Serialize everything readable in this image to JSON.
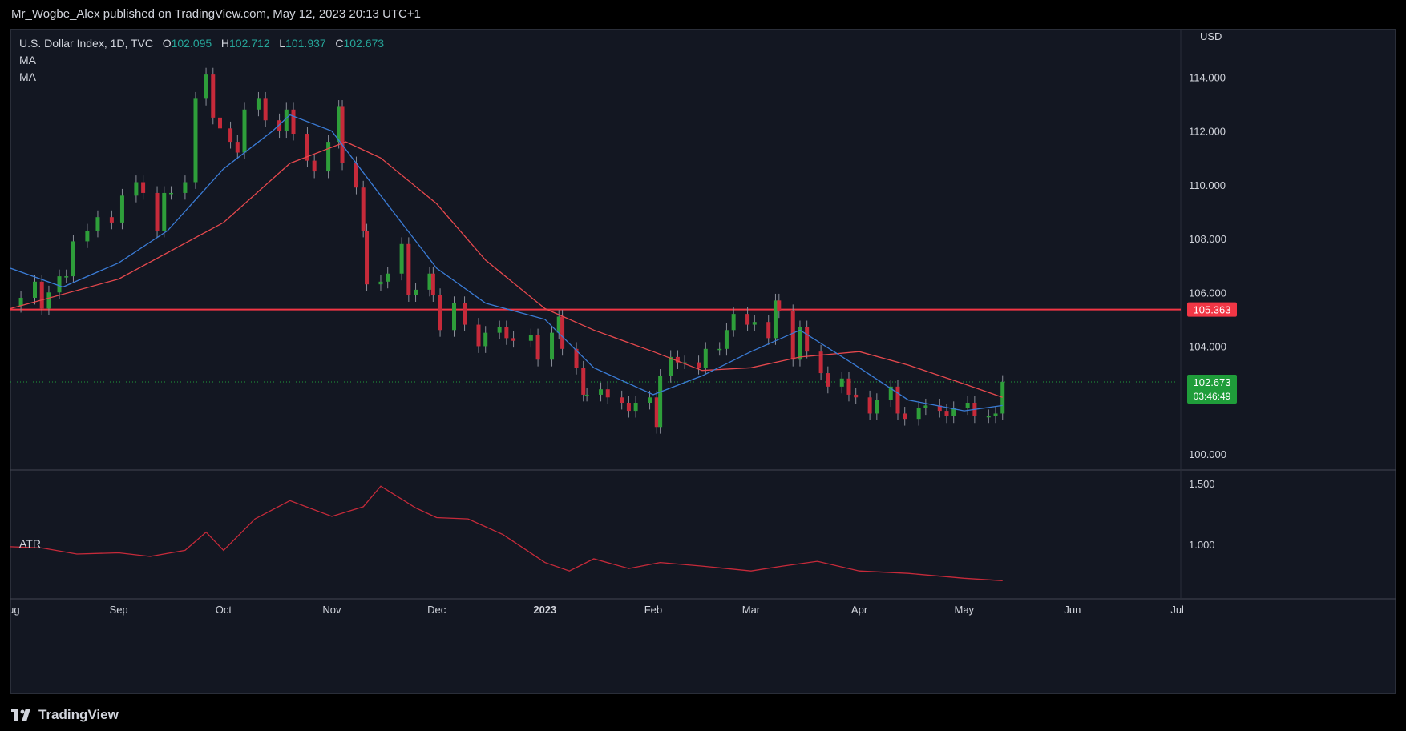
{
  "header": {
    "published_text": "Mr_Wogbe_Alex published on TradingView.com, May 12, 2023 20:13 UTC+1"
  },
  "legend": {
    "symbol": "U.S. Dollar Index, 1D, TVC",
    "open_label": "O",
    "open": "102.095",
    "high_label": "H",
    "high": "102.712",
    "low_label": "L",
    "low": "101.937",
    "close_label": "C",
    "close": "102.673",
    "ma1": "MA",
    "ma2": "MA"
  },
  "footer": {
    "brand": "TradingView"
  },
  "colors": {
    "up": "#26a69a",
    "up_body": "#2e9e3a",
    "down": "#c62a3a",
    "ma_fast": "#3a7bd5",
    "ma_slow": "#e5484d",
    "level": "#f23645",
    "atr": "#c62a3a",
    "price_tag": "#1f9d3a"
  },
  "chart_data": {
    "type": "candlestick",
    "currency": "USD",
    "y_ticks": [
      "114.000",
      "112.000",
      "110.000",
      "108.000",
      "106.000",
      "104.000",
      "100.000"
    ],
    "y_range": [
      99.4,
      115.8
    ],
    "x_ticks": [
      {
        "label": "Aug",
        "date": "2022-08-01"
      },
      {
        "label": "Sep",
        "date": "2022-09-01"
      },
      {
        "label": "Oct",
        "date": "2022-10-01"
      },
      {
        "label": "Nov",
        "date": "2022-11-01"
      },
      {
        "label": "Dec",
        "date": "2022-12-01"
      },
      {
        "label": "2023",
        "date": "2023-01-01"
      },
      {
        "label": "Feb",
        "date": "2023-02-01"
      },
      {
        "label": "Mar",
        "date": "2023-03-01"
      },
      {
        "label": "Apr",
        "date": "2023-04-01"
      },
      {
        "label": "May",
        "date": "2023-05-01"
      },
      {
        "label": "Jun",
        "date": "2023-06-01"
      },
      {
        "label": "Jul",
        "date": "2023-07-01"
      }
    ],
    "x_range": [
      "2022-08-01",
      "2023-07-02"
    ],
    "horizontal_level": {
      "value": 105.363,
      "label": "105.363"
    },
    "last_price": {
      "value": 102.673,
      "label": "102.673",
      "countdown": "03:46:49"
    },
    "closes": [
      {
        "date": "2022-08-04",
        "close": 105.8
      },
      {
        "date": "2022-08-08",
        "close": 106.4
      },
      {
        "date": "2022-08-10",
        "close": 105.4
      },
      {
        "date": "2022-08-12",
        "close": 106.0
      },
      {
        "date": "2022-08-15",
        "close": 106.6
      },
      {
        "date": "2022-08-17",
        "close": 106.6
      },
      {
        "date": "2022-08-19",
        "close": 107.9
      },
      {
        "date": "2022-08-23",
        "close": 108.3
      },
      {
        "date": "2022-08-26",
        "close": 108.8
      },
      {
        "date": "2022-08-30",
        "close": 108.6
      },
      {
        "date": "2022-09-02",
        "close": 109.6
      },
      {
        "date": "2022-09-06",
        "close": 110.1
      },
      {
        "date": "2022-09-08",
        "close": 109.7
      },
      {
        "date": "2022-09-12",
        "close": 108.3
      },
      {
        "date": "2022-09-14",
        "close": 109.7
      },
      {
        "date": "2022-09-16",
        "close": 109.7
      },
      {
        "date": "2022-09-20",
        "close": 110.1
      },
      {
        "date": "2022-09-23",
        "close": 113.2
      },
      {
        "date": "2022-09-26",
        "close": 114.1
      },
      {
        "date": "2022-09-28",
        "close": 112.5
      },
      {
        "date": "2022-09-30",
        "close": 112.1
      },
      {
        "date": "2022-10-03",
        "close": 111.6
      },
      {
        "date": "2022-10-05",
        "close": 111.2
      },
      {
        "date": "2022-10-07",
        "close": 112.8
      },
      {
        "date": "2022-10-11",
        "close": 113.2
      },
      {
        "date": "2022-10-13",
        "close": 112.4
      },
      {
        "date": "2022-10-17",
        "close": 112.0
      },
      {
        "date": "2022-10-19",
        "close": 112.8
      },
      {
        "date": "2022-10-21",
        "close": 111.9
      },
      {
        "date": "2022-10-25",
        "close": 110.9
      },
      {
        "date": "2022-10-27",
        "close": 110.5
      },
      {
        "date": "2022-10-31",
        "close": 111.6
      },
      {
        "date": "2022-11-03",
        "close": 112.9
      },
      {
        "date": "2022-11-04",
        "close": 110.8
      },
      {
        "date": "2022-11-08",
        "close": 109.9
      },
      {
        "date": "2022-11-10",
        "close": 108.3
      },
      {
        "date": "2022-11-11",
        "close": 106.3
      },
      {
        "date": "2022-11-15",
        "close": 106.4
      },
      {
        "date": "2022-11-17",
        "close": 106.7
      },
      {
        "date": "2022-11-21",
        "close": 107.8
      },
      {
        "date": "2022-11-23",
        "close": 105.9
      },
      {
        "date": "2022-11-25",
        "close": 106.1
      },
      {
        "date": "2022-11-29",
        "close": 106.7
      },
      {
        "date": "2022-11-30",
        "close": 105.9
      },
      {
        "date": "2022-12-02",
        "close": 104.6
      },
      {
        "date": "2022-12-06",
        "close": 105.6
      },
      {
        "date": "2022-12-09",
        "close": 104.8
      },
      {
        "date": "2022-12-13",
        "close": 104.0
      },
      {
        "date": "2022-12-15",
        "close": 104.5
      },
      {
        "date": "2022-12-19",
        "close": 104.7
      },
      {
        "date": "2022-12-21",
        "close": 104.3
      },
      {
        "date": "2022-12-23",
        "close": 104.2
      },
      {
        "date": "2022-12-28",
        "close": 104.4
      },
      {
        "date": "2022-12-30",
        "close": 103.5
      },
      {
        "date": "2023-01-03",
        "close": 104.5
      },
      {
        "date": "2023-01-05",
        "close": 105.1
      },
      {
        "date": "2023-01-06",
        "close": 103.9
      },
      {
        "date": "2023-01-10",
        "close": 103.2
      },
      {
        "date": "2023-01-12",
        "close": 102.2
      },
      {
        "date": "2023-01-13",
        "close": 102.2
      },
      {
        "date": "2023-01-17",
        "close": 102.4
      },
      {
        "date": "2023-01-19",
        "close": 102.1
      },
      {
        "date": "2023-01-23",
        "close": 101.9
      },
      {
        "date": "2023-01-25",
        "close": 101.6
      },
      {
        "date": "2023-01-27",
        "close": 101.9
      },
      {
        "date": "2023-01-31",
        "close": 102.1
      },
      {
        "date": "2023-02-02",
        "close": 101.0
      },
      {
        "date": "2023-02-03",
        "close": 102.9
      },
      {
        "date": "2023-02-06",
        "close": 103.6
      },
      {
        "date": "2023-02-08",
        "close": 103.4
      },
      {
        "date": "2023-02-10",
        "close": 103.4
      },
      {
        "date": "2023-02-14",
        "close": 103.2
      },
      {
        "date": "2023-02-16",
        "close": 103.9
      },
      {
        "date": "2023-02-20",
        "close": 103.9
      },
      {
        "date": "2023-02-22",
        "close": 104.6
      },
      {
        "date": "2023-02-24",
        "close": 105.2
      },
      {
        "date": "2023-02-28",
        "close": 104.8
      },
      {
        "date": "2023-03-02",
        "close": 104.9
      },
      {
        "date": "2023-03-06",
        "close": 104.3
      },
      {
        "date": "2023-03-08",
        "close": 105.7
      },
      {
        "date": "2023-03-09",
        "close": 105.3
      },
      {
        "date": "2023-03-13",
        "close": 103.5
      },
      {
        "date": "2023-03-15",
        "close": 104.7
      },
      {
        "date": "2023-03-17",
        "close": 103.8
      },
      {
        "date": "2023-03-21",
        "close": 103.0
      },
      {
        "date": "2023-03-23",
        "close": 102.5
      },
      {
        "date": "2023-03-27",
        "close": 102.8
      },
      {
        "date": "2023-03-29",
        "close": 102.2
      },
      {
        "date": "2023-03-31",
        "close": 102.1
      },
      {
        "date": "2023-04-04",
        "close": 101.5
      },
      {
        "date": "2023-04-06",
        "close": 102.0
      },
      {
        "date": "2023-04-10",
        "close": 102.5
      },
      {
        "date": "2023-04-12",
        "close": 101.5
      },
      {
        "date": "2023-04-14",
        "close": 101.3
      },
      {
        "date": "2023-04-18",
        "close": 101.7
      },
      {
        "date": "2023-04-20",
        "close": 101.8
      },
      {
        "date": "2023-04-24",
        "close": 101.6
      },
      {
        "date": "2023-04-26",
        "close": 101.4
      },
      {
        "date": "2023-04-28",
        "close": 101.7
      },
      {
        "date": "2023-05-02",
        "close": 101.9
      },
      {
        "date": "2023-05-04",
        "close": 101.4
      },
      {
        "date": "2023-05-08",
        "close": 101.4
      },
      {
        "date": "2023-05-10",
        "close": 101.5
      },
      {
        "date": "2023-05-12",
        "close": 102.673
      }
    ],
    "ma_fast": [
      {
        "date": "2022-08-01",
        "value": 106.9
      },
      {
        "date": "2022-08-16",
        "value": 106.2
      },
      {
        "date": "2022-09-01",
        "value": 107.1
      },
      {
        "date": "2022-09-15",
        "value": 108.3
      },
      {
        "date": "2022-10-01",
        "value": 110.6
      },
      {
        "date": "2022-10-15",
        "value": 112.0
      },
      {
        "date": "2022-10-20",
        "value": 112.6
      },
      {
        "date": "2022-11-01",
        "value": 112.0
      },
      {
        "date": "2022-11-15",
        "value": 109.6
      },
      {
        "date": "2022-12-01",
        "value": 106.9
      },
      {
        "date": "2022-12-15",
        "value": 105.6
      },
      {
        "date": "2023-01-01",
        "value": 105.0
      },
      {
        "date": "2023-01-15",
        "value": 103.2
      },
      {
        "date": "2023-02-01",
        "value": 102.2
      },
      {
        "date": "2023-02-15",
        "value": 102.9
      },
      {
        "date": "2023-03-01",
        "value": 103.8
      },
      {
        "date": "2023-03-15",
        "value": 104.6
      },
      {
        "date": "2023-04-01",
        "value": 103.2
      },
      {
        "date": "2023-04-15",
        "value": 102.0
      },
      {
        "date": "2023-05-01",
        "value": 101.6
      },
      {
        "date": "2023-05-12",
        "value": 101.8
      }
    ],
    "ma_slow": [
      {
        "date": "2022-08-01",
        "value": 105.4
      },
      {
        "date": "2022-09-01",
        "value": 106.5
      },
      {
        "date": "2022-10-01",
        "value": 108.6
      },
      {
        "date": "2022-10-20",
        "value": 110.8
      },
      {
        "date": "2022-11-05",
        "value": 111.6
      },
      {
        "date": "2022-11-15",
        "value": 111.0
      },
      {
        "date": "2022-12-01",
        "value": 109.3
      },
      {
        "date": "2022-12-15",
        "value": 107.2
      },
      {
        "date": "2023-01-01",
        "value": 105.4
      },
      {
        "date": "2023-01-15",
        "value": 104.6
      },
      {
        "date": "2023-02-01",
        "value": 103.8
      },
      {
        "date": "2023-02-15",
        "value": 103.1
      },
      {
        "date": "2023-03-01",
        "value": 103.2
      },
      {
        "date": "2023-03-15",
        "value": 103.6
      },
      {
        "date": "2023-04-01",
        "value": 103.8
      },
      {
        "date": "2023-04-15",
        "value": 103.3
      },
      {
        "date": "2023-05-01",
        "value": 102.6
      },
      {
        "date": "2023-05-12",
        "value": 102.1
      }
    ],
    "atr": {
      "label": "ATR",
      "y_ticks": [
        "1.500",
        "1.000"
      ],
      "y_range": [
        0.55,
        1.6
      ],
      "points": [
        {
          "date": "2022-08-01",
          "value": 0.98
        },
        {
          "date": "2022-08-10",
          "value": 0.97
        },
        {
          "date": "2022-08-20",
          "value": 0.92
        },
        {
          "date": "2022-09-01",
          "value": 0.93
        },
        {
          "date": "2022-09-10",
          "value": 0.9
        },
        {
          "date": "2022-09-20",
          "value": 0.95
        },
        {
          "date": "2022-09-26",
          "value": 1.1
        },
        {
          "date": "2022-10-01",
          "value": 0.95
        },
        {
          "date": "2022-10-10",
          "value": 1.21
        },
        {
          "date": "2022-10-20",
          "value": 1.36
        },
        {
          "date": "2022-11-01",
          "value": 1.23
        },
        {
          "date": "2022-11-10",
          "value": 1.31
        },
        {
          "date": "2022-11-15",
          "value": 1.48
        },
        {
          "date": "2022-11-25",
          "value": 1.3
        },
        {
          "date": "2022-12-01",
          "value": 1.22
        },
        {
          "date": "2022-12-10",
          "value": 1.21
        },
        {
          "date": "2022-12-20",
          "value": 1.08
        },
        {
          "date": "2023-01-01",
          "value": 0.85
        },
        {
          "date": "2023-01-08",
          "value": 0.78
        },
        {
          "date": "2023-01-15",
          "value": 0.88
        },
        {
          "date": "2023-01-25",
          "value": 0.8
        },
        {
          "date": "2023-02-03",
          "value": 0.85
        },
        {
          "date": "2023-02-15",
          "value": 0.82
        },
        {
          "date": "2023-03-01",
          "value": 0.78
        },
        {
          "date": "2023-03-10",
          "value": 0.82
        },
        {
          "date": "2023-03-20",
          "value": 0.86
        },
        {
          "date": "2023-04-01",
          "value": 0.78
        },
        {
          "date": "2023-04-15",
          "value": 0.76
        },
        {
          "date": "2023-05-01",
          "value": 0.72
        },
        {
          "date": "2023-05-12",
          "value": 0.7
        }
      ]
    }
  }
}
